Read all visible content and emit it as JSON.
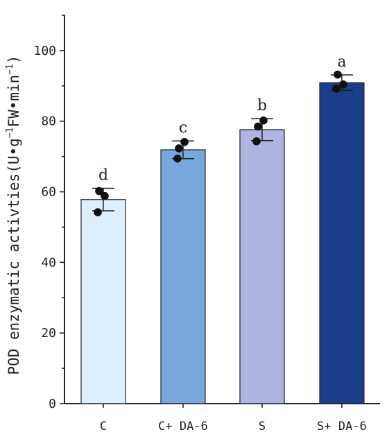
{
  "chart_data": {
    "type": "bar",
    "title": "",
    "xlabel": "",
    "ylabel": {
      "prefix": "POD enzymatic activties(U•g",
      "sup1": "−1",
      "middle": "FW•min",
      "sup2": "−1",
      "suffix": ")"
    },
    "ylim": [
      0,
      110
    ],
    "yticks": [
      0,
      20,
      40,
      60,
      80,
      100
    ],
    "categories": [
      "C",
      "C+ DA-6",
      "S",
      "S+ DA-6"
    ],
    "values": [
      57.8,
      71.9,
      77.6,
      90.9
    ],
    "error": [
      3.2,
      2.5,
      3.1,
      2.2
    ],
    "significance": [
      "d",
      "c",
      "b",
      "a"
    ],
    "points": [
      [
        60.2,
        58.8,
        54.2
      ],
      [
        72.3,
        74.1,
        69.4
      ],
      [
        78.5,
        80.2,
        74.3
      ],
      [
        93.2,
        90.4,
        89.2
      ]
    ],
    "colors": [
      "#ddeefc",
      "#78a7de",
      "#aeb5e0",
      "#1a3e8c"
    ],
    "grid": false,
    "legend": "none"
  }
}
